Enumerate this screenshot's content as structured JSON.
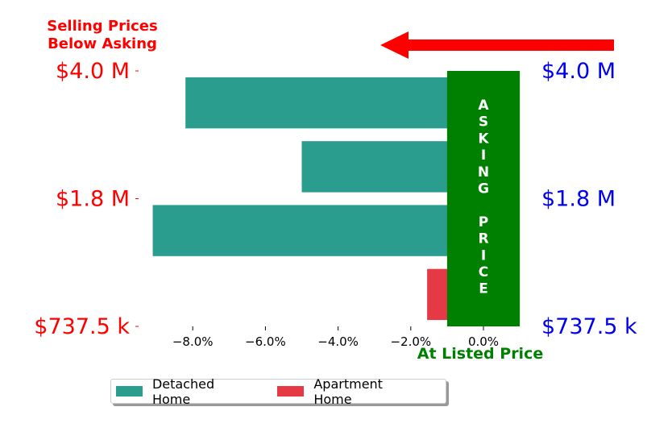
{
  "chart_data": {
    "type": "bar",
    "orientation": "horizontal",
    "title_left": [
      "Selling Prices",
      "Below Asking"
    ],
    "xlabel": "At Listed Price",
    "center_band_label": "ASKING PRICE",
    "xlim": [
      -9.2,
      1.0
    ],
    "x_ticks": [
      -8,
      -6,
      -4,
      -2,
      0
    ],
    "x_tick_labels": [
      "−8.0%",
      "−6.0%",
      "−4.0%",
      "−2.0%",
      "0.0%"
    ],
    "left_tick_labels": [
      "$4.0 M",
      "$1.8 M",
      "$737.5 k"
    ],
    "right_tick_labels": [
      "$4.0 M",
      "$1.8 M",
      "$737.5 k"
    ],
    "series": [
      {
        "name": "Detached Home",
        "color": "#2a9d8f",
        "bars": [
          {
            "position": 0.5,
            "value": -8.2
          },
          {
            "position": 1.5,
            "value": -5.0
          },
          {
            "position": 2.5,
            "value": -9.1
          }
        ]
      },
      {
        "name": "Apartment Home",
        "color": "#e63946",
        "bars": [
          {
            "position": 3.5,
            "value": -1.55
          }
        ]
      }
    ],
    "colors": {
      "left_labels": "#ff0000",
      "right_labels": "#0000ee",
      "asking_band": "#008000",
      "arrow": "#ff0000",
      "xlabel": "#008000"
    }
  },
  "legend": {
    "items": [
      {
        "label": "Detached Home",
        "color": "#2a9d8f"
      },
      {
        "label": "Apartment Home",
        "color": "#e63946"
      }
    ]
  }
}
